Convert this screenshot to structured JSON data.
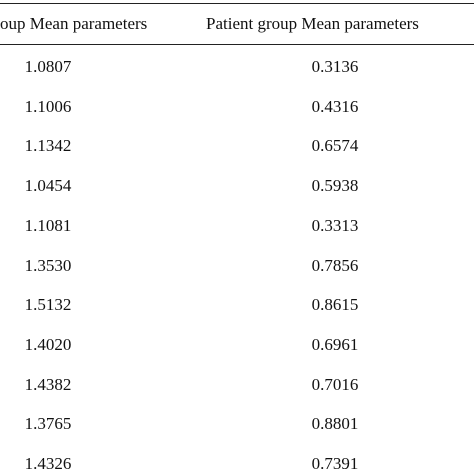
{
  "table": {
    "header": [
      "oup Mean parameters",
      "Patient group Mean parameters"
    ],
    "rows": [
      [
        "1.0807",
        "0.3136"
      ],
      [
        "1.1006",
        "0.4316"
      ],
      [
        "1.1342",
        "0.6574"
      ],
      [
        "1.0454",
        "0.5938"
      ],
      [
        "1.1081",
        "0.3313"
      ],
      [
        "1.3530",
        "0.7856"
      ],
      [
        "1.5132",
        "0.8615"
      ],
      [
        "1.4020",
        "0.6961"
      ],
      [
        "1.4382",
        "0.7016"
      ],
      [
        "1.3765",
        "0.8801"
      ],
      [
        "1.4326",
        "0.7391"
      ]
    ]
  }
}
